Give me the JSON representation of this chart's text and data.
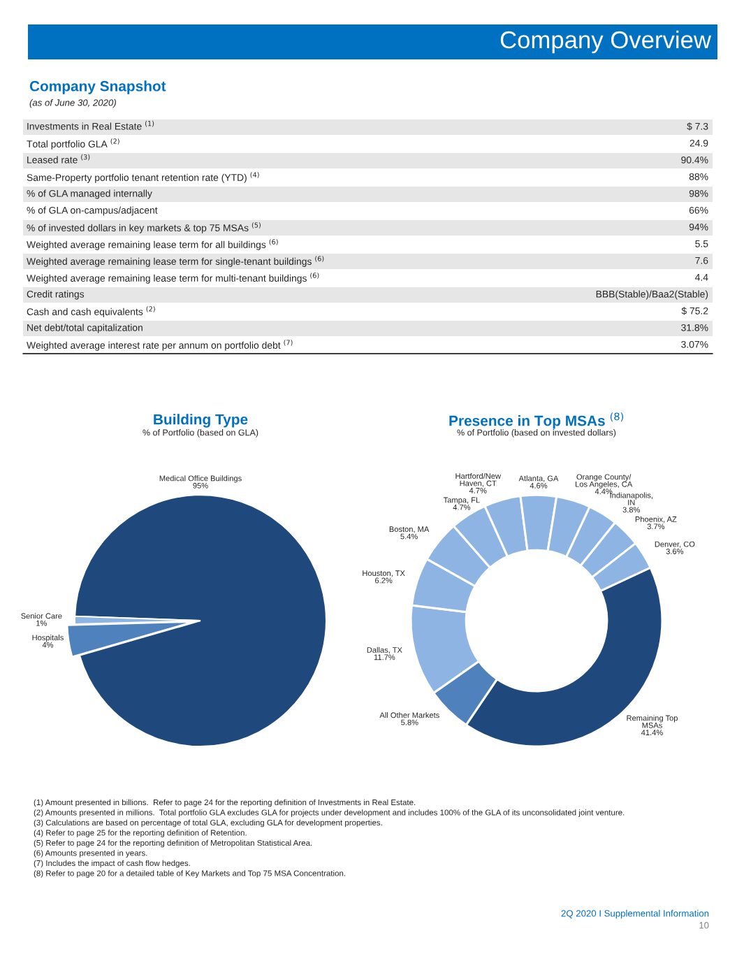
{
  "chart_data": [
    {
      "type": "other",
      "title": "Company Overview",
      "subtitle": "Company Snapshot",
      "annotations": [
        "(as of June 30, 2020)",
        "Investments in Real Estate $^{(1)}$",
        "$ 7.3",
        "Total portfolio GLA $^{(2)}$",
        "24.9",
        "Leased rate $^{(3)}$",
        "90.4%",
        "Same-Property portfolio tenant retention rate (YTD) $^{(4)}$",
        "88%",
        "% of GLA managed internally",
        "98%",
        "% of GLA on-campus/adjacent",
        "66%",
        "% of invested dollars in key markets & top 75 MSAs $^{(5)}$",
        "94%",
        "Weighted average remaining lease term for all buildings $^{(6)}$",
        "5.5",
        "Weighted average remaining lease term for single-tenant buildings $^{(6)}$",
        "7.6",
        "Weighted average remaining lease term for multi-tenant buildings $^{(6)}$",
        "4.4",
        "Credit ratings",
        "BBB(Stable)/Baa2(Stable)",
        "Cash and cash equivalents $^{(2)}$",
        "$ 75.2",
        "Net debt/total capitalization",
        "31.8%",
        "Weighted average interest rate per annum on portfolio debt $^{(7)}$",
        "3.07%"
      ]
    },
    {
      "type": "pie",
      "title": "Building Type",
      "subtitle": "% of Portfolio (based on GLA)",
      "categories": [
        "Medical Office Buildings",
        "Senior Care",
        "Hospitals"
      ],
      "values": [
        95,
        1,
        4
      ],
      "value_labels": [
        "95%",
        "1%",
        "4%"
      ],
      "colors": [
        "#1f497d",
        "#8eb4e3",
        "#4f81bd"
      ]
    },
    {
      "type": "donut",
      "title": "Presence in Top MSAs $^{(8)}$",
      "subtitle": "% of Portfolio (based on invested dollars)",
      "categories": [
        "Remaining Top\nMSAs",
        "All Other Markets",
        "Dallas, TX",
        "Houston, TX",
        "Boston, MA",
        "Tampa, FL",
        "Hartford/New\nHaven, CT",
        "Atlanta, GA",
        "Orange County/\nLos Angeles, CA",
        "Indianapolis,\nIN",
        "Phoenix, AZ",
        "Denver, CO"
      ],
      "values": [
        41.4,
        5.8,
        11.7,
        6.2,
        5.4,
        4.7,
        4.7,
        4.6,
        4.4,
        3.8,
        3.7,
        3.6
      ],
      "value_labels": [
        "41.4%",
        "5.8%",
        "11.7%",
        "6.2%",
        "5.4%",
        "4.7%",
        "4.7%",
        "4.6%",
        "4.4%",
        "3.8%",
        "3.7%",
        "3.6%"
      ],
      "colors": [
        "#1f497d",
        "#4f81bd",
        "#8eb4e3",
        "#8eb4e3",
        "#8eb4e3",
        "#8eb4e3",
        "#8eb4e3",
        "#8eb4e3",
        "#8eb4e3",
        "#8eb4e3",
        "#8eb4e3",
        "#8eb4e3"
      ]
    },
    {
      "type": "other",
      "annotations": [
        "(1) Amount presented in billions.  Refer to page 24 for the reporting definition of Investments in Real Estate.",
        "(2) Amounts presented in millions.  Total portfolio GLA excludes GLA for projects under development and includes 100% of the GLA of its unconsolidated joint venture.",
        "(3) Calculations are based on percentage of total GLA, excluding GLA for development properties.",
        "(4) Refer to page 25 for the reporting definition of Retention.",
        "(5) Refer to page 24 for the reporting definition of Metropolitan Statistical Area.",
        "(6) Amounts presented in years.",
        "(7) Includes the impact of cash flow hedges.",
        "(8) Refer to page 20 for a detailed table of Key Markets and Top 75 MSA Concentration.",
        "2Q 2020 I Supplemental Information",
        "10"
      ]
    }
  ]
}
